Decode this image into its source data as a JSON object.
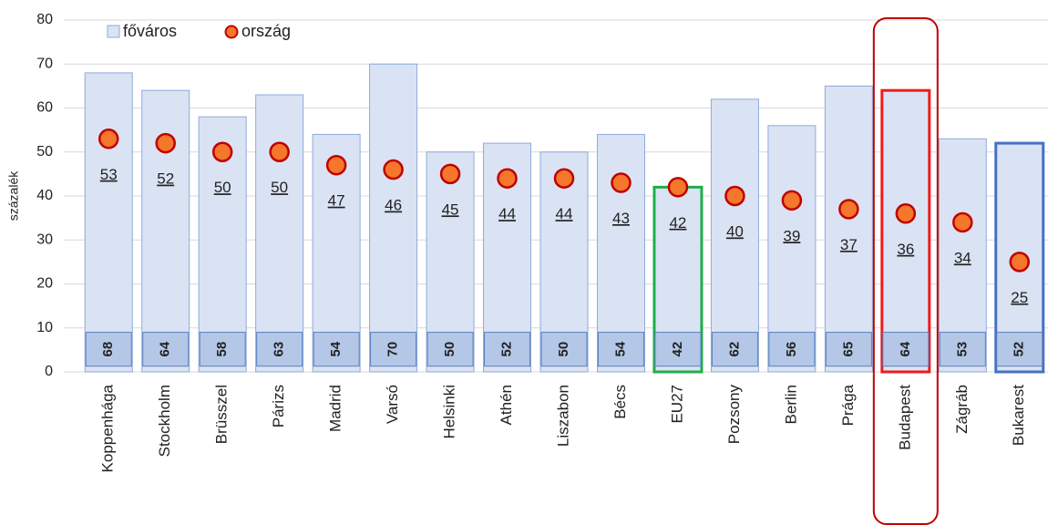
{
  "chart_data": {
    "type": "bar",
    "y_label": "százalék",
    "categories": [
      "Koppenhága",
      "Stockholm",
      "Brüsszel",
      "Párizs",
      "Madrid",
      "Varsó",
      "Helsinki",
      "Athén",
      "Liszabon",
      "Bécs",
      "EU27",
      "Pozsony",
      "Berlin",
      "Prága",
      "Budapest",
      "Zágráb",
      "Bukarest"
    ],
    "series": [
      {
        "name": "főváros",
        "color": "#dae3f3",
        "edge": "#8faadc",
        "label_fill": "#b4c7e7",
        "values": [
          68,
          64,
          58,
          63,
          54,
          70,
          50,
          52,
          50,
          54,
          42,
          62,
          56,
          65,
          64,
          53,
          52
        ]
      },
      {
        "name": "ország",
        "color": "#f4772c",
        "edge": "#c00000",
        "values": [
          53,
          52,
          50,
          50,
          47,
          46,
          45,
          44,
          44,
          43,
          42,
          40,
          39,
          37,
          36,
          34,
          25
        ]
      }
    ],
    "edge_colors": [
      "#8faadc",
      "#8faadc",
      "#8faadc",
      "#8faadc",
      "#8faadc",
      "#8faadc",
      "#8faadc",
      "#8faadc",
      "#8faadc",
      "#8faadc",
      "#1fae4b",
      "#8faadc",
      "#8faadc",
      "#8faadc",
      "#ee1c1c",
      "#8faadc",
      "#4472c4"
    ],
    "ylim": [
      0,
      80
    ],
    "yticks": [
      0,
      10,
      20,
      30,
      40,
      50,
      60,
      70,
      80
    ],
    "grid": true,
    "legend": "top-left"
  }
}
